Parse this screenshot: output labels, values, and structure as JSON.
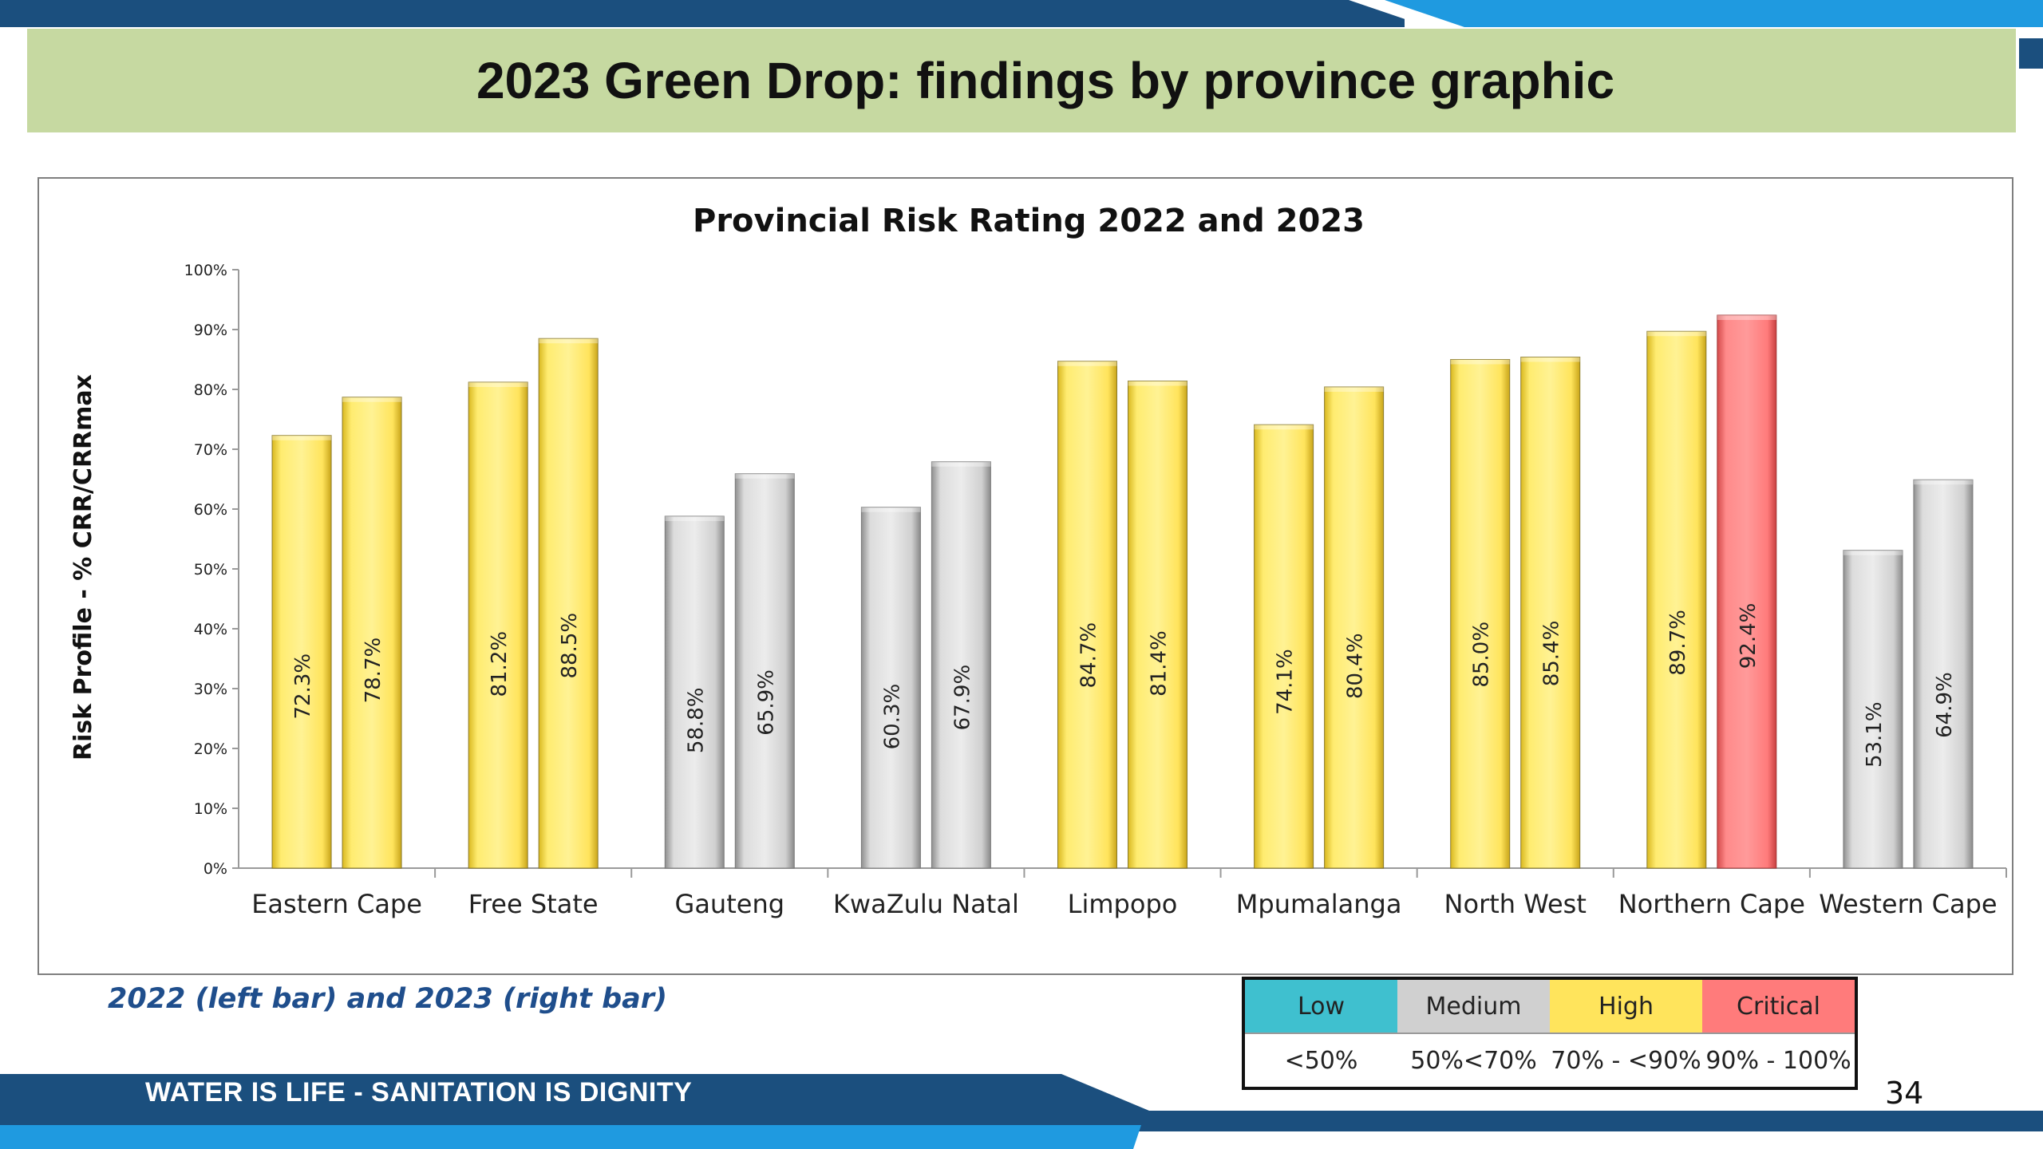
{
  "slide": {
    "title": "2023 Green Drop: findings by province graphic",
    "caption": "2022 (left bar) and 2023 (right bar)",
    "footer": "WATER IS LIFE - SANITATION IS DIGNITY",
    "page_number": "34"
  },
  "colors": {
    "navy": "#1b4f7e",
    "blue": "#1f9ae0",
    "banner": "#c6d9a1",
    "low": "#3fc0cf",
    "medium": "#d0d0d0",
    "high": "#ffe45c",
    "critical": "#ff7b7b"
  },
  "legend": {
    "headers": [
      {
        "label": "Low",
        "color": "#3fc0cf"
      },
      {
        "label": "Medium",
        "color": "#d0d0d0"
      },
      {
        "label": "High",
        "color": "#ffe45c"
      },
      {
        "label": "Critical",
        "color": "#ff7b7b"
      }
    ],
    "ranges": [
      "<50%",
      "50%<70%",
      "70% - <90%",
      "90% - 100%"
    ]
  },
  "chart_data": {
    "type": "bar",
    "title": "Provincial Risk Rating 2022 and 2023",
    "ylabel": "Risk Profile - % CRR/CRRmax",
    "xlabel": "",
    "ylim": [
      0,
      100
    ],
    "yticks": [
      "0%",
      "10%",
      "20%",
      "30%",
      "40%",
      "50%",
      "60%",
      "70%",
      "80%",
      "90%",
      "100%"
    ],
    "categories": [
      "Eastern Cape",
      "Free State",
      "Gauteng",
      "KwaZulu Natal",
      "Limpopo",
      "Mpumalanga",
      "North West",
      "Northern Cape",
      "Western Cape"
    ],
    "series": [
      {
        "values": [
          72.3,
          81.2,
          58.8,
          60.3,
          84.7,
          74.1,
          85.0,
          89.7,
          53.1
        ]
      },
      {
        "values": [
          78.7,
          88.5,
          65.9,
          67.9,
          81.4,
          80.4,
          85.4,
          92.4,
          64.9
        ]
      }
    ],
    "data_labels": [
      [
        "72.3%",
        "81.2%",
        "58.8%",
        "60.3%",
        "84.7%",
        "74.1%",
        "85.0%",
        "89.7%",
        "53.1%"
      ],
      [
        "78.7%",
        "88.5%",
        "65.9%",
        "67.9%",
        "81.4%",
        "80.4%",
        "85.4%",
        "92.4%",
        "64.9%"
      ]
    ],
    "grid": false,
    "legend": "none"
  }
}
